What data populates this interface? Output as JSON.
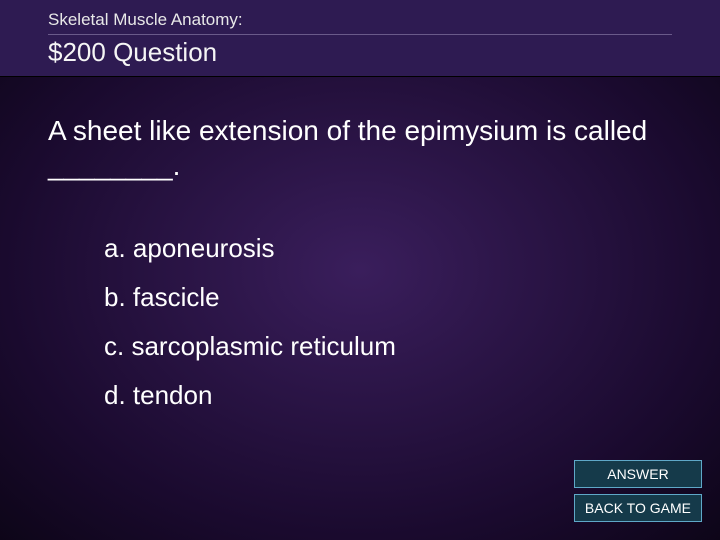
{
  "header": {
    "category": "Skeletal Muscle Anatomy:",
    "value": "$200 Question"
  },
  "question": {
    "text": "A sheet like extension of the epimysium is called ________.",
    "options": [
      "a. aponeurosis",
      "b. fascicle",
      "c. sarcoplasmic reticulum",
      "d. tendon"
    ]
  },
  "buttons": {
    "answer": "ANSWER",
    "back": "BACK TO GAME"
  },
  "colors": {
    "header_bg": "#2e1b52",
    "body_center": "#3a1e5c",
    "body_edge": "#0d0518",
    "text": "#ffffff",
    "button_bg": "#153a4a",
    "button_border": "#5fa8c8"
  }
}
